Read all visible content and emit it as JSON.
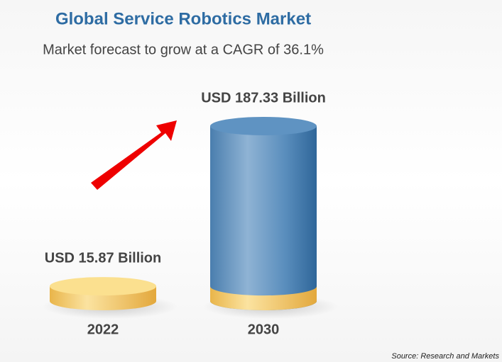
{
  "chart_data": {
    "type": "bar",
    "title": "Global Service Robotics Market",
    "subtitle": "Market forecast to grow at a CAGR of 36.1%",
    "categories": [
      "2022",
      "2030"
    ],
    "values": [
      15.87,
      187.33
    ],
    "value_labels": [
      "USD 15.87 Billion",
      "USD 187.33 Billion"
    ],
    "colors": [
      "#f2c25a",
      "#4f86b8"
    ],
    "source": "Source: Research and Markets"
  }
}
